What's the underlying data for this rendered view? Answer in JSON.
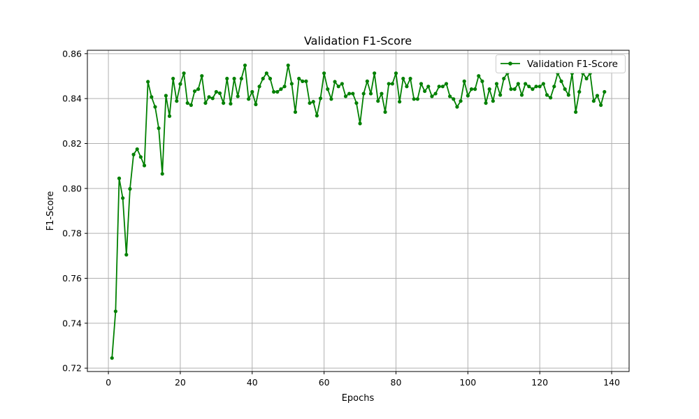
{
  "chart_data": {
    "type": "line",
    "title": "Validation F1-Score",
    "xlabel": "Epochs",
    "ylabel": "F1-Score",
    "xlim": [
      -5.85,
      144.85
    ],
    "ylim": [
      0.7185,
      0.8615
    ],
    "xticks": [
      0,
      20,
      40,
      60,
      80,
      100,
      120,
      140
    ],
    "xtick_labels": [
      "0",
      "20",
      "40",
      "60",
      "80",
      "100",
      "120",
      "140"
    ],
    "yticks": [
      0.72,
      0.74,
      0.76,
      0.78,
      0.8,
      0.82,
      0.84,
      0.86
    ],
    "ytick_labels": [
      "0.72",
      "0.74",
      "0.76",
      "0.78",
      "0.80",
      "0.82",
      "0.84",
      "0.86"
    ],
    "grid": true,
    "legend_position": "upper right",
    "series": [
      {
        "name": "Validation F1-Score",
        "color": "#008000",
        "marker": "circle",
        "x": [
          1,
          2,
          3,
          4,
          5,
          6,
          7,
          8,
          9,
          10,
          11,
          12,
          13,
          14,
          15,
          16,
          17,
          18,
          19,
          20,
          21,
          22,
          23,
          24,
          25,
          26,
          27,
          28,
          29,
          30,
          31,
          32,
          33,
          34,
          35,
          36,
          37,
          38,
          39,
          40,
          41,
          42,
          43,
          44,
          45,
          46,
          47,
          48,
          49,
          50,
          51,
          52,
          53,
          54,
          55,
          56,
          57,
          58,
          59,
          60,
          61,
          62,
          63,
          64,
          65,
          66,
          67,
          68,
          69,
          70,
          71,
          72,
          73,
          74,
          75,
          76,
          77,
          78,
          79,
          80,
          81,
          82,
          83,
          84,
          85,
          86,
          87,
          88,
          89,
          90,
          91,
          92,
          93,
          94,
          95,
          96,
          97,
          98,
          99,
          100,
          101,
          102,
          103,
          104,
          105,
          106,
          107,
          108,
          109,
          110,
          111,
          112,
          113,
          114,
          115,
          116,
          117,
          118,
          119,
          120,
          121,
          122,
          123,
          124,
          125,
          126,
          127,
          128,
          129,
          130,
          131,
          132,
          133,
          134,
          135,
          136,
          137,
          138
        ],
        "values": [
          0.7245,
          0.7453,
          0.8045,
          0.7957,
          0.7705,
          0.7998,
          0.8151,
          0.8175,
          0.814,
          0.8102,
          0.8475,
          0.8407,
          0.8363,
          0.8268,
          0.8065,
          0.8413,
          0.8322,
          0.8489,
          0.8389,
          0.8465,
          0.8513,
          0.838,
          0.8371,
          0.8433,
          0.8442,
          0.8501,
          0.838,
          0.8407,
          0.8401,
          0.843,
          0.8424,
          0.838,
          0.8489,
          0.8377,
          0.8489,
          0.841,
          0.8489,
          0.8548,
          0.8398,
          0.843,
          0.8374,
          0.8454,
          0.8489,
          0.8513,
          0.8489,
          0.843,
          0.843,
          0.8442,
          0.8454,
          0.8548,
          0.8466,
          0.834,
          0.8489,
          0.8477,
          0.8477,
          0.838,
          0.8386,
          0.8324,
          0.8401,
          0.8513,
          0.8442,
          0.8398,
          0.8475,
          0.8454,
          0.8466,
          0.841,
          0.8422,
          0.8422,
          0.838,
          0.8289,
          0.8422,
          0.8477,
          0.8422,
          0.8513,
          0.8389,
          0.8422,
          0.834,
          0.8466,
          0.8466,
          0.8513,
          0.8386,
          0.8489,
          0.8454,
          0.8489,
          0.8398,
          0.8398,
          0.8466,
          0.8433,
          0.8454,
          0.841,
          0.8422,
          0.8454,
          0.8454,
          0.8466,
          0.841,
          0.8398,
          0.8363,
          0.8389,
          0.8477,
          0.8413,
          0.8442,
          0.8442,
          0.8501,
          0.8477,
          0.838,
          0.8442,
          0.8389,
          0.8466,
          0.8416,
          0.8489,
          0.8513,
          0.8442,
          0.8442,
          0.8466,
          0.8416,
          0.8466,
          0.8454,
          0.8442,
          0.8454,
          0.8454,
          0.8466,
          0.8416,
          0.8404,
          0.8454,
          0.8513,
          0.8477,
          0.8442,
          0.8416,
          0.8513,
          0.834,
          0.843,
          0.8513,
          0.8489,
          0.8513,
          0.8389,
          0.8413,
          0.8371,
          0.843
        ]
      }
    ]
  }
}
